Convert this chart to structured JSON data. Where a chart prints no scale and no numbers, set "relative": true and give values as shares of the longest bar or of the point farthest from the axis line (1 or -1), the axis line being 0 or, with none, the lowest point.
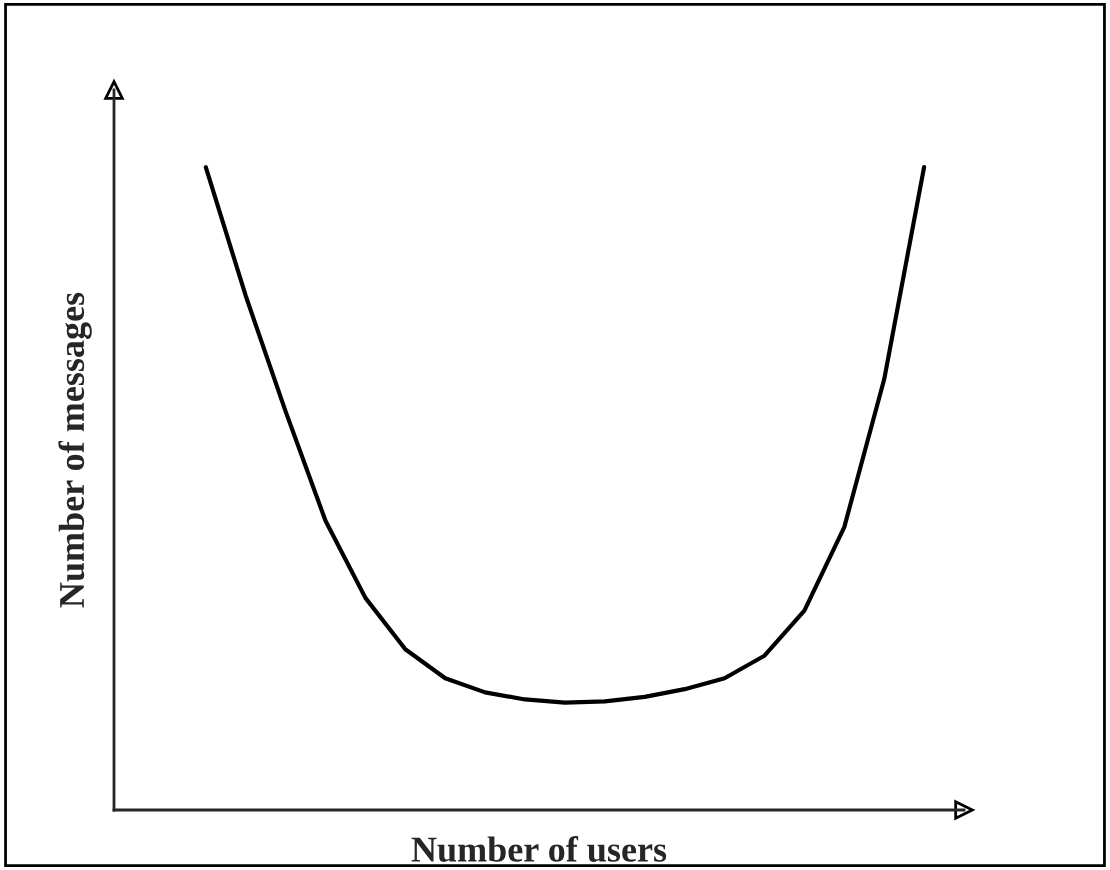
{
  "chart_data": {
    "type": "line",
    "relative": true,
    "xlabel": "Number of users",
    "ylabel": "Number of messages",
    "categories": [
      null,
      null,
      null,
      null,
      null,
      null,
      null,
      null,
      null,
      null,
      null,
      null,
      null,
      null,
      null,
      null,
      null,
      null,
      null
    ],
    "series": [
      {
        "color": "#000000",
        "values": [
          1.0,
          0.8,
          0.62,
          0.45,
          0.33,
          0.25,
          0.205,
          0.183,
          0.172,
          0.167,
          0.169,
          0.176,
          0.188,
          0.205,
          0.24,
          0.31,
          0.44,
          0.67,
          1.0
        ]
      }
    ],
    "grid": false,
    "legend": false,
    "marker": "none",
    "line_style": "solid"
  }
}
